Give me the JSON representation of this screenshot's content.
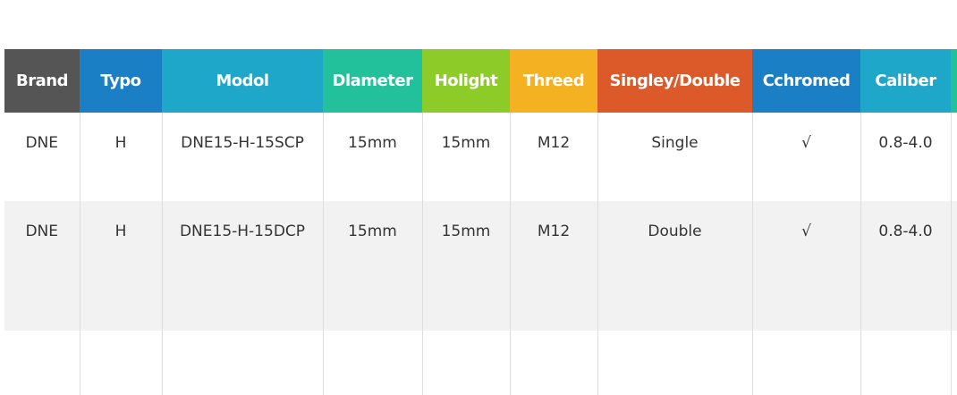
{
  "headers": [
    {
      "label": "Brand",
      "color": "#555555"
    },
    {
      "label": "Typo",
      "color": "#1a7fc4"
    },
    {
      "label": "Modol",
      "color": "#1fa7c9"
    },
    {
      "label": "Dlameter",
      "color": "#22c19b"
    },
    {
      "label": "Holight",
      "color": "#8dcb28"
    },
    {
      "label": "Threed",
      "color": "#f4b223"
    },
    {
      "label": "Singley/Double",
      "color": "#dc5a2a"
    },
    {
      "label": "Cchromed",
      "color": "#1a7fc4"
    },
    {
      "label": "Caliber",
      "color": "#1fa7c9"
    },
    {
      "label": "",
      "color": "#22c19b"
    }
  ],
  "rows": [
    [
      "DNE",
      "H",
      "DNE15-H-15SCP",
      "15mm",
      "15mm",
      "M12",
      "Single",
      "√",
      "0.8-4.0",
      ""
    ],
    [
      "DNE",
      "H",
      "DNE15-H-15DCP",
      "15mm",
      "15mm",
      "M12",
      "Double",
      "√",
      "0.8-4.0",
      ""
    ],
    [
      "",
      "",
      "",
      "",
      "",
      "",
      "",
      "",
      "",
      ""
    ]
  ]
}
